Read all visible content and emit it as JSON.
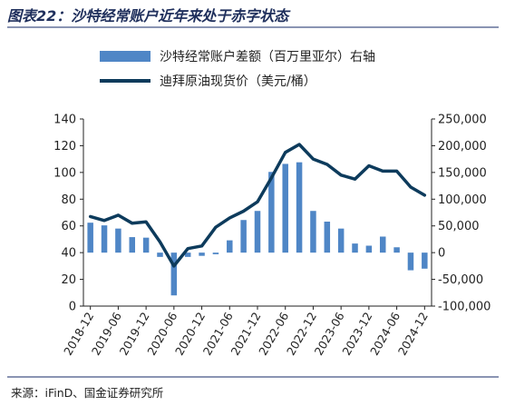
{
  "title": "图表22：沙特经常账户近年来处于赤字状态",
  "source": "来源：iFinD、国金证券研究所",
  "colors": {
    "bar": "#4f86c6",
    "line": "#0d3b5c",
    "title": "#1f2f5c"
  },
  "chart_data": {
    "type": "bar+line",
    "legend": [
      {
        "name": "沙特经常账户差额（百万里亚尔）右轴",
        "kind": "bar"
      },
      {
        "name": "迪拜原油现货价（美元/桶）",
        "kind": "line"
      }
    ],
    "x_tick_labels": [
      "2018-12",
      "2019-06",
      "2019-12",
      "2020-06",
      "2020-12",
      "2021-06",
      "2021-12",
      "2022-06",
      "2022-12",
      "2023-06",
      "2023-12",
      "2024-06",
      "2024-12"
    ],
    "left_axis": {
      "ylim": [
        0,
        140
      ],
      "ticks": [
        0,
        20,
        40,
        60,
        80,
        100,
        120,
        140
      ]
    },
    "right_axis": {
      "ylim": [
        -100000,
        250000
      ],
      "ticks": [
        "-100,000",
        "-50,000",
        "0",
        "50,000",
        "100,000",
        "150,000",
        "200,000",
        "250,000"
      ],
      "tick_values": [
        -100000,
        -50000,
        0,
        50000,
        100000,
        150000,
        200000,
        250000
      ]
    },
    "series": [
      {
        "name": "沙特经常账户差额（百万里亚尔）右轴",
        "axis": "right",
        "kind": "bar",
        "x": [
          "2018-12",
          "2019-03",
          "2019-06",
          "2019-09",
          "2019-12",
          "2020-03",
          "2020-06",
          "2020-09",
          "2020-12",
          "2021-03",
          "2021-06",
          "2021-09",
          "2021-12",
          "2022-03",
          "2022-06",
          "2022-09",
          "2022-12",
          "2023-03",
          "2023-06",
          "2023-09",
          "2023-12",
          "2024-03",
          "2024-06",
          "2024-09",
          "2024-12"
        ],
        "values": [
          56000,
          51000,
          45000,
          29000,
          28000,
          -8000,
          -80000,
          -8000,
          -6000,
          -3000,
          23000,
          61000,
          78000,
          151000,
          166000,
          169000,
          78000,
          58000,
          45000,
          17000,
          13000,
          30000,
          10000,
          -33000,
          -30000
        ]
      },
      {
        "name": "迪拜原油现货价（美元/桶）",
        "axis": "left",
        "kind": "line",
        "x": [
          "2018-12",
          "2019-03",
          "2019-06",
          "2019-09",
          "2019-12",
          "2020-03",
          "2020-06",
          "2020-09",
          "2020-12",
          "2021-03",
          "2021-06",
          "2021-09",
          "2021-12",
          "2022-03",
          "2022-06",
          "2022-09",
          "2022-12",
          "2023-03",
          "2023-06",
          "2023-09",
          "2023-12",
          "2024-03",
          "2024-06",
          "2024-09",
          "2024-12"
        ],
        "values": [
          67,
          64,
          68,
          62,
          63,
          48,
          30,
          43,
          45,
          59,
          66,
          71,
          78,
          96,
          115,
          121,
          110,
          106,
          98,
          95,
          105,
          101,
          101,
          89,
          83
        ]
      }
    ]
  }
}
